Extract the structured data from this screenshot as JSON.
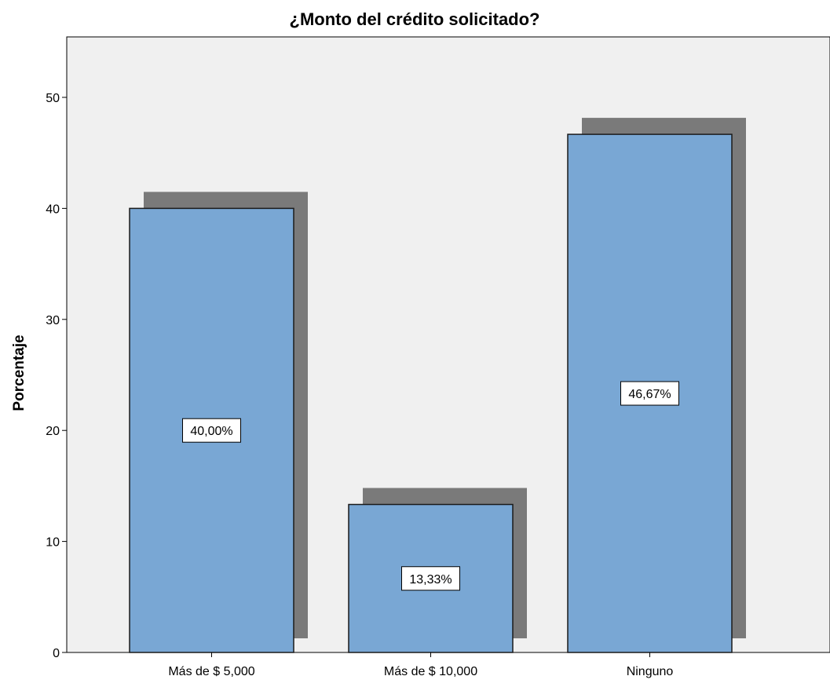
{
  "chart_data": {
    "type": "bar",
    "title": "¿Monto del crédito solicitado?",
    "xlabel": "",
    "ylabel": "Porcentaje",
    "categories": [
      "Más de $ 5,000",
      "Más de $ 10,000",
      "Ninguno"
    ],
    "values": [
      40.0,
      13.33,
      46.67
    ],
    "data_labels": [
      "40,00%",
      "13,33%",
      "46,67%"
    ],
    "ylim": [
      0,
      50
    ],
    "yticks": [
      0,
      10,
      20,
      30,
      40,
      50
    ],
    "ytick_labels": [
      "0",
      "10",
      "20",
      "30",
      "40",
      "50"
    ],
    "grid": false,
    "legend": "none",
    "bar_style": "3d-shadow"
  },
  "colors": {
    "plot_background": "#f0f0f0",
    "bar_fill": "#79a7d4",
    "bar_shadow": "#7a7a7a",
    "bar_stroke": "#1a1a1a",
    "label_box": "#ffffff"
  }
}
